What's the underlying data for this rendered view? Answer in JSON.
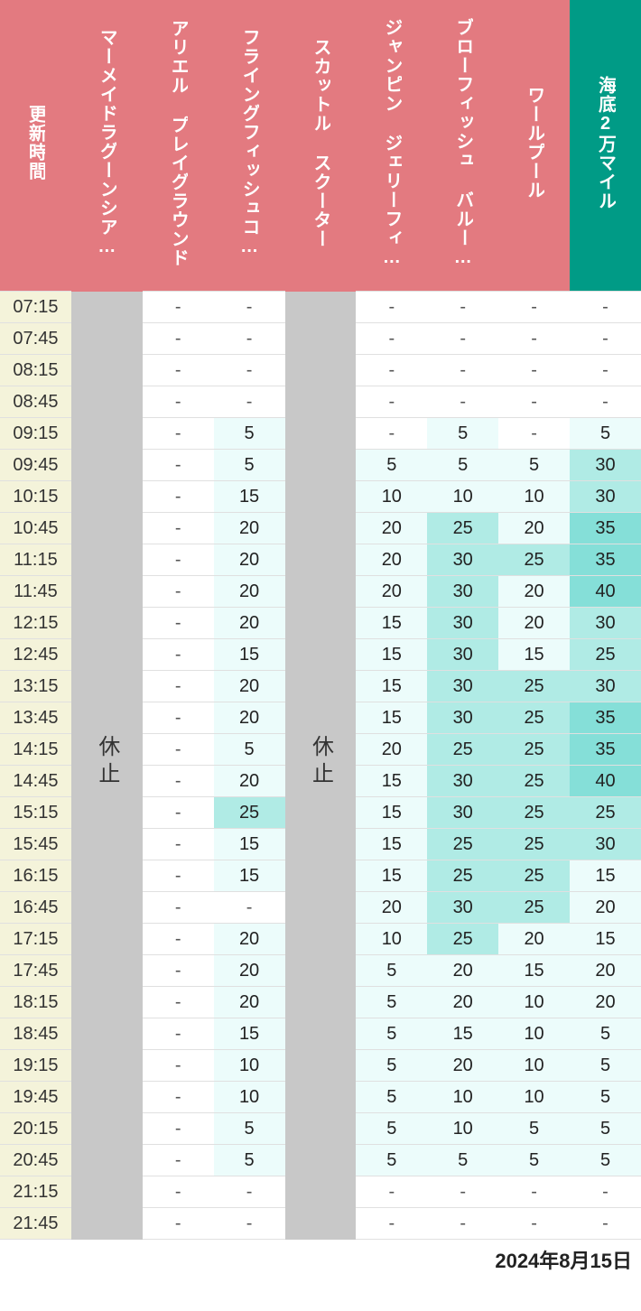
{
  "date_label": "2024年8月15日",
  "closed_label": "休止",
  "colors": {
    "header_normal_bg": "#e37a80",
    "header_highlight_bg": "#009b86",
    "header_fg": "#ffffff",
    "time_bg": "#f4f3da",
    "closed_bg": "#c8c8c8",
    "tier1_bg": "#ecfcfb",
    "tier2_bg": "#b0ebe5",
    "tier3_bg": "#85dfd8",
    "dash_bg": "#ffffff",
    "grid": "#e0e0e0"
  },
  "tiers": {
    "low_max": 20,
    "mid_max": 30
  },
  "columns": [
    {
      "key": "time",
      "label": "更新時間",
      "highlight": false
    },
    {
      "key": "mermaid",
      "label": "マーメイドラグーンシア…",
      "highlight": false
    },
    {
      "key": "ariel",
      "label": "アリエル プレイグラウンド",
      "highlight": false
    },
    {
      "key": "flying",
      "label": "フライングフィッシュコ…",
      "highlight": false
    },
    {
      "key": "scuttle",
      "label": "スカットル スクーター",
      "highlight": false
    },
    {
      "key": "jumpin",
      "label": "ジャンピン ジェリーフィ…",
      "highlight": false
    },
    {
      "key": "blow",
      "label": "ブローフィッシュ バルー…",
      "highlight": false
    },
    {
      "key": "whirl",
      "label": "ワールプール",
      "highlight": false
    },
    {
      "key": "leagues",
      "label": "海底2万マイル",
      "highlight": true
    }
  ],
  "closed_columns": [
    "mermaid",
    "scuttle"
  ],
  "times": [
    "07:15",
    "07:45",
    "08:15",
    "08:45",
    "09:15",
    "09:45",
    "10:15",
    "10:45",
    "11:15",
    "11:45",
    "12:15",
    "12:45",
    "13:15",
    "13:45",
    "14:15",
    "14:45",
    "15:15",
    "15:45",
    "16:15",
    "16:45",
    "17:15",
    "17:45",
    "18:15",
    "18:45",
    "19:15",
    "19:45",
    "20:15",
    "20:45",
    "21:15",
    "21:45"
  ],
  "data": {
    "ariel": [
      "-",
      "-",
      "-",
      "-",
      "-",
      "-",
      "-",
      "-",
      "-",
      "-",
      "-",
      "-",
      "-",
      "-",
      "-",
      "-",
      "-",
      "-",
      "-",
      "-",
      "-",
      "-",
      "-",
      "-",
      "-",
      "-",
      "-",
      "-",
      "-",
      "-"
    ],
    "flying": [
      "-",
      "-",
      "-",
      "-",
      "5",
      "5",
      "15",
      "20",
      "20",
      "20",
      "20",
      "15",
      "20",
      "20",
      "5",
      "20",
      "25",
      "15",
      "15",
      "-",
      "20",
      "20",
      "20",
      "15",
      "10",
      "10",
      "5",
      "5",
      "-",
      "-"
    ],
    "jumpin": [
      "-",
      "-",
      "-",
      "-",
      "-",
      "5",
      "10",
      "20",
      "20",
      "20",
      "15",
      "15",
      "15",
      "15",
      "20",
      "15",
      "15",
      "15",
      "15",
      "20",
      "10",
      "5",
      "5",
      "5",
      "5",
      "5",
      "5",
      "5",
      "-",
      "-"
    ],
    "blow": [
      "-",
      "-",
      "-",
      "-",
      "5",
      "5",
      "10",
      "25",
      "30",
      "30",
      "30",
      "30",
      "30",
      "30",
      "25",
      "30",
      "30",
      "25",
      "25",
      "30",
      "25",
      "20",
      "20",
      "15",
      "20",
      "10",
      "10",
      "5",
      "-",
      "-"
    ],
    "whirl": [
      "-",
      "-",
      "-",
      "-",
      "-",
      "5",
      "10",
      "20",
      "25",
      "20",
      "20",
      "15",
      "25",
      "25",
      "25",
      "25",
      "25",
      "25",
      "25",
      "25",
      "20",
      "15",
      "10",
      "10",
      "10",
      "10",
      "5",
      "5",
      "-",
      "-"
    ],
    "leagues": [
      "-",
      "-",
      "-",
      "-",
      "5",
      "30",
      "30",
      "35",
      "35",
      "40",
      "30",
      "25",
      "30",
      "35",
      "35",
      "40",
      "25",
      "30",
      "15",
      "20",
      "15",
      "20",
      "20",
      "5",
      "5",
      "5",
      "5",
      "5",
      "-",
      "-"
    ]
  }
}
